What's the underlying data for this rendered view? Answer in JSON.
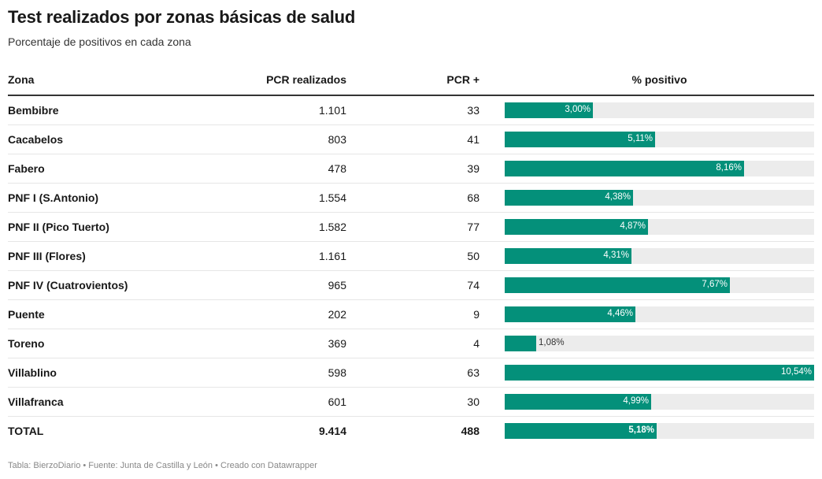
{
  "title": "Test realizados por zonas básicas de salud",
  "subtitle": "Porcentaje de positivos en cada zona",
  "colors": {
    "bar": "#04907a",
    "track": "#ececec"
  },
  "chart_data": {
    "type": "table",
    "columns": [
      "Zona",
      "PCR realizados",
      "PCR +",
      "% positivo"
    ],
    "max_percent": 10.54,
    "rows": [
      {
        "zona": "Bembibre",
        "pcr": "1.101",
        "positivos": "33",
        "pct": 3.0,
        "pct_label": "3,00%"
      },
      {
        "zona": "Cacabelos",
        "pcr": "803",
        "positivos": "41",
        "pct": 5.11,
        "pct_label": "5,11%"
      },
      {
        "zona": "Fabero",
        "pcr": "478",
        "positivos": "39",
        "pct": 8.16,
        "pct_label": "8,16%"
      },
      {
        "zona": "PNF I (S.Antonio)",
        "pcr": "1.554",
        "positivos": "68",
        "pct": 4.38,
        "pct_label": "4,38%"
      },
      {
        "zona": "PNF II (Pico Tuerto)",
        "pcr": "1.582",
        "positivos": "77",
        "pct": 4.87,
        "pct_label": "4,87%"
      },
      {
        "zona": "PNF III (Flores)",
        "pcr": "1.161",
        "positivos": "50",
        "pct": 4.31,
        "pct_label": "4,31%"
      },
      {
        "zona": "PNF IV (Cuatrovientos)",
        "pcr": "965",
        "positivos": "74",
        "pct": 7.67,
        "pct_label": "7,67%"
      },
      {
        "zona": "Puente",
        "pcr": "202",
        "positivos": "9",
        "pct": 4.46,
        "pct_label": "4,46%"
      },
      {
        "zona": "Toreno",
        "pcr": "369",
        "positivos": "4",
        "pct": 1.08,
        "pct_label": "1,08%"
      },
      {
        "zona": "Villablino",
        "pcr": "598",
        "positivos": "63",
        "pct": 10.54,
        "pct_label": "10,54%"
      },
      {
        "zona": "Villafranca",
        "pcr": "601",
        "positivos": "30",
        "pct": 4.99,
        "pct_label": "4,99%"
      },
      {
        "zona": "TOTAL",
        "pcr": "9.414",
        "positivos": "488",
        "pct": 5.18,
        "pct_label": "5,18%",
        "total": true
      }
    ]
  },
  "footer": "Tabla: BierzoDiario • Fuente: Junta de Castilla y León • Creado con Datawrapper"
}
